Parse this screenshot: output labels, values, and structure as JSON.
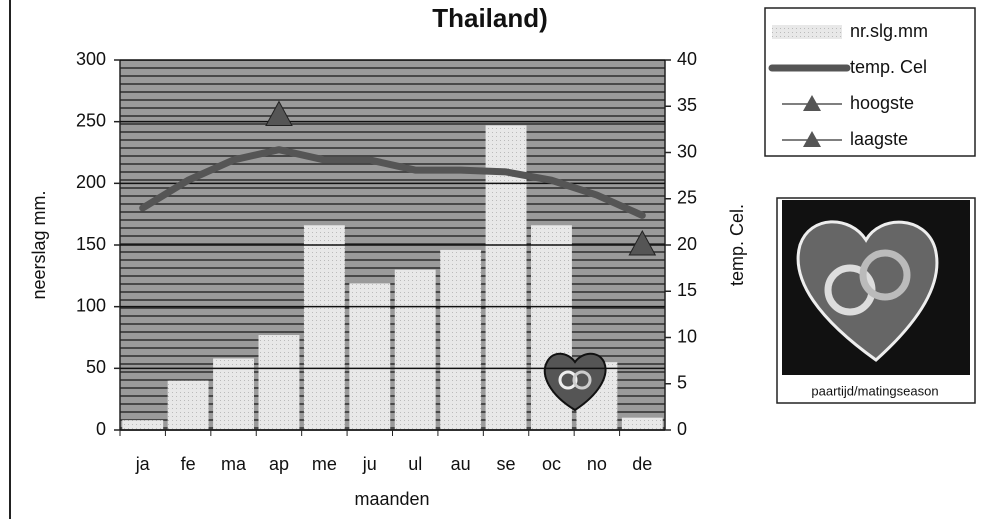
{
  "chart_data": {
    "type": "bar",
    "title": "Thailand)",
    "x_label": "maanden",
    "y_label": "neerslag mm.",
    "y2_label": "temp. Cel.",
    "categories": [
      "ja",
      "fe",
      "ma",
      "ap",
      "me",
      "ju",
      "ul",
      "au",
      "se",
      "oc",
      "no",
      "de"
    ],
    "series": [
      {
        "name": "nr.slg.mm",
        "type": "bar",
        "color": "#e6e6e6",
        "values": [
          8,
          40,
          58,
          77,
          166,
          119,
          130,
          146,
          247,
          166,
          55,
          10
        ]
      },
      {
        "name": "temp. Cel",
        "type": "line",
        "axis": "y2",
        "color": "#555555",
        "values": [
          24,
          27,
          29.2,
          30.3,
          29.2,
          29.2,
          28.1,
          28.1,
          27.9,
          27,
          25.4,
          23.2
        ]
      },
      {
        "name": "hoogste",
        "type": "marker",
        "axis": "y2",
        "color": "#555555",
        "values": [
          null,
          null,
          null,
          34,
          null,
          null,
          null,
          null,
          null,
          null,
          null,
          null
        ]
      },
      {
        "name": "laagste",
        "type": "marker",
        "axis": "y2",
        "color": "#555555",
        "values": [
          null,
          null,
          null,
          null,
          null,
          null,
          null,
          null,
          null,
          null,
          null,
          20
        ]
      }
    ],
    "ylim": [
      0,
      300
    ],
    "yticks": [
      0,
      50,
      100,
      150,
      200,
      250,
      300
    ],
    "y2lim": [
      0,
      40
    ],
    "y2ticks": [
      0,
      5,
      10,
      15,
      20,
      25,
      30,
      35,
      40
    ],
    "grid": true,
    "image_caption": "paartijd/matingseason"
  }
}
